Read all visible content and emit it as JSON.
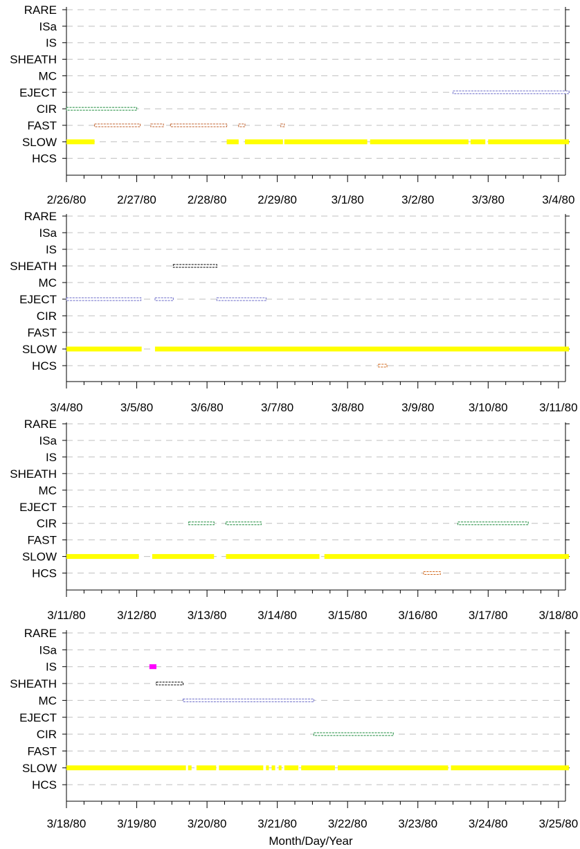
{
  "figure": {
    "xlabel": "Month/Day/Year",
    "categories": [
      "RARE",
      "ISa",
      "IS",
      "SHEATH",
      "MC",
      "EJECT",
      "CIR",
      "FAST",
      "SLOW",
      "HCS"
    ],
    "colors": {
      "SLOW": "#ffff00",
      "FAST": "#c0622d",
      "CIR": "#1a8a3a",
      "EJECT": "#6a6ac8",
      "MC": "#6a6ac8",
      "SHEATH": "#000000",
      "IS": "#ff00ff",
      "HCS": "#d26a1e",
      "grid": "#bfbfbf"
    },
    "grid": true
  },
  "chart_data": [
    {
      "type": "timeline",
      "xlim": [
        "2/26/80",
        "3/4/80"
      ],
      "ticks": [
        "2/26/80",
        "2/27/80",
        "2/28/80",
        "2/29/80",
        "3/1/80",
        "3/2/80",
        "3/3/80",
        "3/4/80"
      ],
      "intervals": [
        {
          "category": "EJECT",
          "start": 5.5,
          "end": 7.15
        },
        {
          "category": "CIR",
          "start": 0.0,
          "end": 1.0
        },
        {
          "category": "FAST",
          "start": 0.4,
          "end": 1.05
        },
        {
          "category": "FAST",
          "start": 1.2,
          "end": 1.38
        },
        {
          "category": "FAST",
          "start": 1.48,
          "end": 2.28
        },
        {
          "category": "FAST",
          "start": 2.45,
          "end": 2.54
        },
        {
          "category": "FAST",
          "start": 3.05,
          "end": 3.1
        },
        {
          "category": "SLOW",
          "start": 0.0,
          "end": 0.4
        },
        {
          "category": "SLOW",
          "start": 2.28,
          "end": 2.45
        },
        {
          "category": "SLOW",
          "start": 2.54,
          "end": 3.08
        },
        {
          "category": "SLOW",
          "start": 3.1,
          "end": 4.28
        },
        {
          "category": "SLOW",
          "start": 4.32,
          "end": 5.72
        },
        {
          "category": "SLOW",
          "start": 5.75,
          "end": 5.96
        },
        {
          "category": "SLOW",
          "start": 6.0,
          "end": 7.15
        }
      ]
    },
    {
      "type": "timeline",
      "xlim": [
        "3/4/80",
        "3/11/80"
      ],
      "ticks": [
        "3/4/80",
        "3/5/80",
        "3/6/80",
        "3/7/80",
        "3/8/80",
        "3/9/80",
        "3/10/80",
        "3/11/80"
      ],
      "intervals": [
        {
          "category": "SHEATH",
          "start": 1.52,
          "end": 2.14
        },
        {
          "category": "EJECT",
          "start": 0.0,
          "end": 1.06
        },
        {
          "category": "EJECT",
          "start": 1.26,
          "end": 1.52
        },
        {
          "category": "EJECT",
          "start": 2.14,
          "end": 2.84
        },
        {
          "category": "SLOW",
          "start": 0.0,
          "end": 1.07
        },
        {
          "category": "SLOW",
          "start": 1.26,
          "end": 7.15
        },
        {
          "category": "HCS",
          "start": 4.44,
          "end": 4.56
        }
      ]
    },
    {
      "type": "timeline",
      "xlim": [
        "3/11/80",
        "3/18/80"
      ],
      "ticks": [
        "3/11/80",
        "3/12/80",
        "3/13/80",
        "3/14/80",
        "3/15/80",
        "3/16/80",
        "3/17/80",
        "3/18/80"
      ],
      "intervals": [
        {
          "category": "CIR",
          "start": 1.74,
          "end": 2.1
        },
        {
          "category": "CIR",
          "start": 2.27,
          "end": 2.77
        },
        {
          "category": "CIR",
          "start": 5.57,
          "end": 6.57
        },
        {
          "category": "SLOW",
          "start": 0.0,
          "end": 1.03
        },
        {
          "category": "SLOW",
          "start": 1.22,
          "end": 2.1
        },
        {
          "category": "SLOW",
          "start": 2.27,
          "end": 3.6
        },
        {
          "category": "SLOW",
          "start": 3.67,
          "end": 7.15
        },
        {
          "category": "HCS",
          "start": 5.08,
          "end": 5.32
        }
      ]
    },
    {
      "type": "timeline",
      "xlim": [
        "3/18/80",
        "3/25/80"
      ],
      "ticks": [
        "3/18/80",
        "3/19/80",
        "3/20/80",
        "3/21/80",
        "3/22/80",
        "3/23/80",
        "3/24/80",
        "3/25/80"
      ],
      "intervals": [
        {
          "category": "IS",
          "start": 1.18,
          "end": 1.28
        },
        {
          "category": "SHEATH",
          "start": 1.28,
          "end": 1.66
        },
        {
          "category": "MC",
          "start": 1.66,
          "end": 3.52
        },
        {
          "category": "CIR",
          "start": 3.52,
          "end": 4.65
        },
        {
          "category": "SLOW",
          "start": 0.0,
          "end": 1.7
        },
        {
          "category": "SLOW",
          "start": 1.73,
          "end": 1.78
        },
        {
          "category": "SLOW",
          "start": 1.85,
          "end": 2.13
        },
        {
          "category": "SLOW",
          "start": 2.17,
          "end": 2.8
        },
        {
          "category": "SLOW",
          "start": 2.84,
          "end": 2.88
        },
        {
          "category": "SLOW",
          "start": 2.92,
          "end": 2.97
        },
        {
          "category": "SLOW",
          "start": 3.02,
          "end": 3.06
        },
        {
          "category": "SLOW",
          "start": 3.1,
          "end": 3.3
        },
        {
          "category": "SLOW",
          "start": 3.34,
          "end": 3.82
        },
        {
          "category": "SLOW",
          "start": 3.86,
          "end": 5.43
        },
        {
          "category": "SLOW",
          "start": 5.47,
          "end": 7.15
        }
      ]
    }
  ]
}
